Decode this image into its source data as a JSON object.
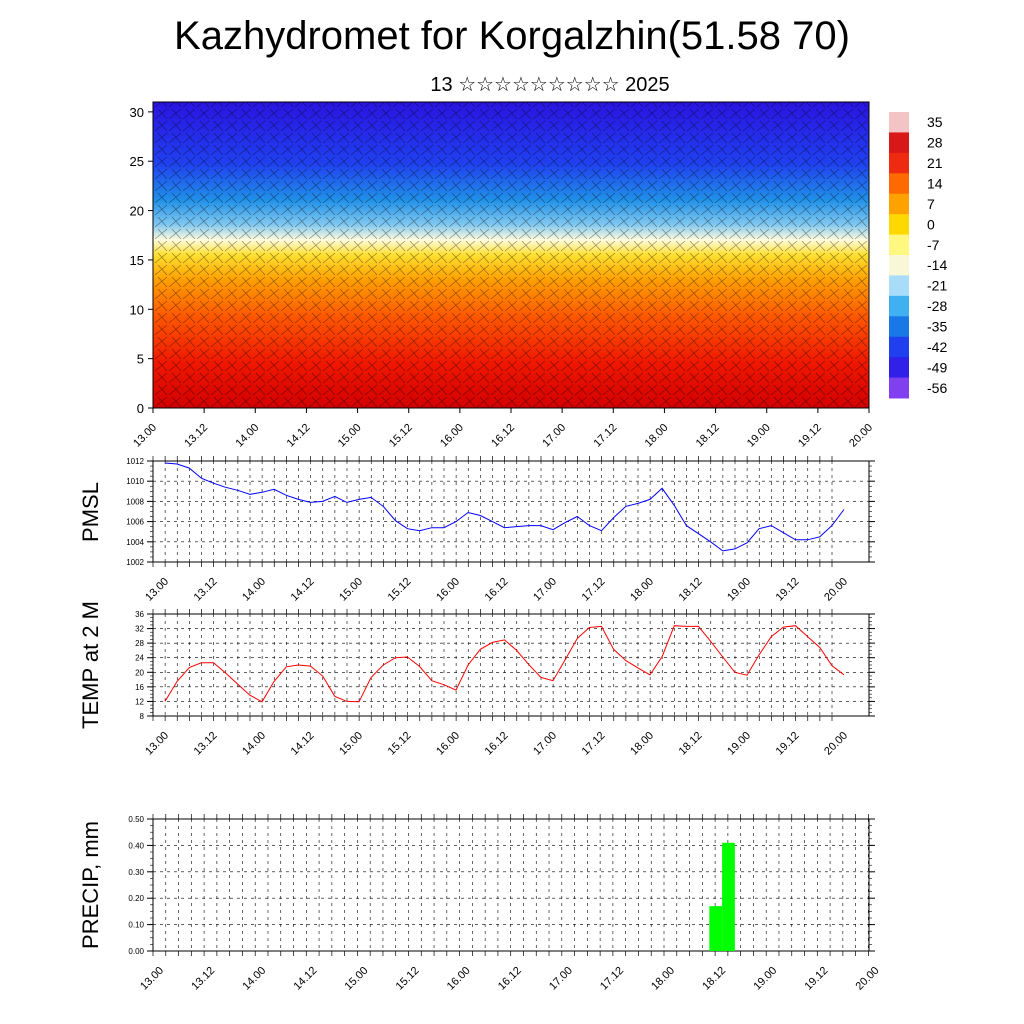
{
  "title": "Kazhydromet for Korgalzhin(51.58 70)",
  "subtitle": "13 ☆☆☆☆☆☆☆☆☆ 2025",
  "time_labels": [
    "13.00",
    "13.12",
    "14.00",
    "14.12",
    "15.00",
    "15.12",
    "16.00",
    "16.12",
    "17.00",
    "17.12",
    "18.00",
    "18.12",
    "19.00",
    "19.12",
    "20.00"
  ],
  "chart_data": [
    {
      "type": "heatmap",
      "name": "cross-section",
      "y_ticks": [
        0,
        5,
        10,
        15,
        20,
        25,
        30
      ],
      "ylim": [
        0,
        31
      ],
      "colorbar": {
        "labels": [
          "35",
          "28",
          "21",
          "14",
          "7",
          "0",
          "-7",
          "-14",
          "-21",
          "-28",
          "-35",
          "-42",
          "-49",
          "-56"
        ],
        "colors": [
          "#f2c4c4",
          "#d81818",
          "#ee2a10",
          "#ff6a00",
          "#ffa200",
          "#ffd800",
          "#fff880",
          "#f8f8d8",
          "#a8dcf8",
          "#40b0f0",
          "#1878e8",
          "#2040f0",
          "#3020e8",
          "#8040f0"
        ]
      }
    },
    {
      "type": "line",
      "ylabel": "PMSL",
      "ylim": [
        1002,
        1012
      ],
      "y_ticks": [
        "1002",
        "1004",
        "1006",
        "1008",
        "1010",
        "1012"
      ],
      "color": "#0000ff",
      "x": [
        0,
        1,
        2,
        3,
        4,
        5,
        6,
        7,
        8,
        9,
        10,
        11,
        12,
        13,
        14,
        15,
        16,
        17,
        18,
        19,
        20,
        21,
        22,
        23,
        24,
        25,
        26,
        27,
        28,
        29,
        30,
        31,
        32,
        33,
        34,
        35,
        36,
        37,
        38,
        39,
        40,
        41,
        42,
        43,
        44,
        45,
        46,
        47,
        48,
        49,
        50,
        51,
        52,
        53,
        54,
        55,
        56
      ],
      "values": [
        1011.8,
        1011.7,
        1011.3,
        1010.3,
        1009.8,
        1009.4,
        1009.1,
        1008.7,
        1008.9,
        1009.2,
        1008.6,
        1008.2,
        1007.9,
        1008.0,
        1008.5,
        1007.9,
        1008.2,
        1008.4,
        1007.5,
        1006.1,
        1005.3,
        1005.1,
        1005.4,
        1005.4,
        1006.0,
        1006.9,
        1006.6,
        1006.0,
        1005.4,
        1005.5,
        1005.6,
        1005.6,
        1005.2,
        1005.9,
        1006.5,
        1005.6,
        1005.1,
        1006.4,
        1007.5,
        1007.8,
        1008.2,
        1009.3,
        1007.6,
        1005.6,
        1004.8,
        1004.0,
        1003.1,
        1003.3,
        1003.9,
        1005.3,
        1005.6,
        1004.9,
        1004.2,
        1004.2,
        1004.5,
        1005.6,
        1007.2
      ]
    },
    {
      "type": "line",
      "ylabel": "TEMP at 2 M",
      "ylim": [
        8,
        36
      ],
      "y_ticks": [
        "8",
        "12",
        "16",
        "20",
        "24",
        "28",
        "32",
        "36"
      ],
      "color": "#ff0000",
      "x": [
        0,
        1,
        2,
        3,
        4,
        5,
        6,
        7,
        8,
        9,
        10,
        11,
        12,
        13,
        14,
        15,
        16,
        17,
        18,
        19,
        20,
        21,
        22,
        23,
        24,
        25,
        26,
        27,
        28,
        29,
        30,
        31,
        32,
        33,
        34,
        35,
        36,
        37,
        38,
        39,
        40,
        41,
        42,
        43,
        44,
        45,
        46,
        47,
        48,
        49,
        50,
        51,
        52,
        53,
        54,
        55,
        56
      ],
      "values": [
        12.0,
        17.5,
        21.3,
        22.6,
        22.6,
        19.8,
        16.7,
        13.7,
        11.9,
        17.5,
        21.5,
        22.0,
        21.7,
        19.0,
        13.4,
        12.0,
        11.9,
        18.6,
        22.0,
        24.0,
        24.2,
        21.6,
        17.7,
        16.6,
        15.1,
        22.0,
        26.3,
        28.2,
        28.9,
        26.0,
        22.1,
        18.6,
        17.7,
        23.4,
        29.3,
        32.3,
        32.6,
        26.3,
        23.2,
        21.2,
        19.3,
        24.3,
        32.8,
        32.6,
        32.6,
        28.5,
        24.2,
        20.0,
        19.2,
        24.8,
        29.8,
        32.4,
        32.8,
        29.8,
        26.8,
        21.8,
        19.3
      ]
    },
    {
      "type": "bar",
      "ylabel": "PRECIP, mm",
      "ylim": [
        0,
        0.5
      ],
      "y_ticks": [
        "0.00",
        "0.10",
        "0.20",
        "0.30",
        "0.40",
        "0.50"
      ],
      "color": "#00ff00",
      "x": [
        43.5,
        44.5
      ],
      "values": [
        0.17,
        0.41
      ]
    }
  ]
}
